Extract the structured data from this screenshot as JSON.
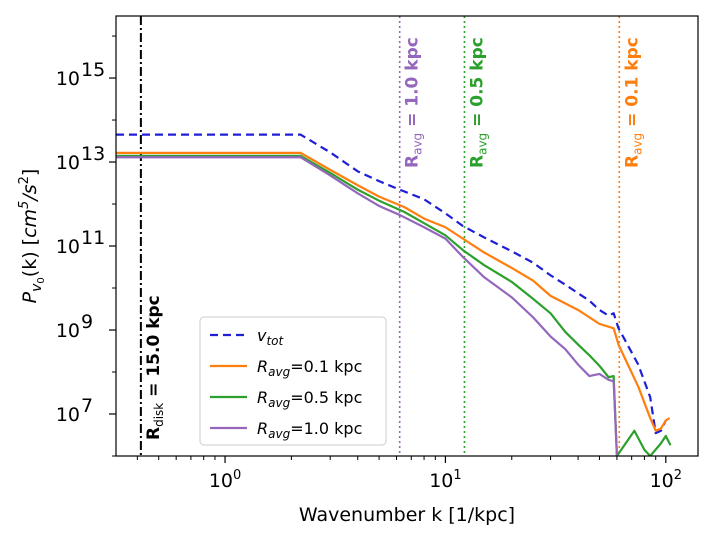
{
  "chart_data": {
    "type": "line",
    "title": "",
    "xlabel": "Wavenumber k [1/kpc]",
    "ylabel_parts": {
      "p": "P",
      "sub": "v",
      "subsub": "0",
      "arg": "(k) [",
      "unit": "cm",
      "sup1": "5",
      "slash": "/s",
      "sup2": "2",
      "close": "]"
    },
    "xscale": "log",
    "yscale": "log",
    "xlim": [
      0.32,
      140
    ],
    "ylim": [
      1000000.0,
      3e+16
    ],
    "xticks": [
      {
        "value": 1,
        "base": "10",
        "exp": "0"
      },
      {
        "value": 10,
        "base": "10",
        "exp": "1"
      },
      {
        "value": 100,
        "base": "10",
        "exp": "2"
      }
    ],
    "yticks": [
      {
        "value": 10000000.0,
        "base": "10",
        "exp": "7"
      },
      {
        "value": 1000000000.0,
        "base": "10",
        "exp": "9"
      },
      {
        "value": 100000000000.0,
        "base": "10",
        "exp": "11"
      },
      {
        "value": 10000000000000.0,
        "base": "10",
        "exp": "13"
      },
      {
        "value": 1000000000000000.0,
        "base": "10",
        "exp": "15"
      }
    ],
    "series": [
      {
        "id": "vtot",
        "name": "v_tot",
        "color": "#1f1fd6",
        "dash": "8,5",
        "points": [
          [
            0.32,
            45000000000000.0
          ],
          [
            2.2,
            45000000000000.0
          ],
          [
            3.0,
            17000000000000.0
          ],
          [
            4.0,
            6000000000000.0
          ],
          [
            5.0,
            3500000000000.0
          ],
          [
            6.2,
            2200000000000.0
          ],
          [
            8.0,
            1300000000000.0
          ],
          [
            10.0,
            600000000000.0
          ],
          [
            12.0,
            300000000000.0
          ],
          [
            15.0,
            160000000000.0
          ],
          [
            20.0,
            75000000000.0
          ],
          [
            25.0,
            40000000000.0
          ],
          [
            30.0,
            20000000000.0
          ],
          [
            35.0,
            12000000000.0
          ],
          [
            40.0,
            7500000000.0
          ],
          [
            45.0,
            5000000000.0
          ],
          [
            50.0,
            3000000000.0
          ],
          [
            55.0,
            2200000000.0
          ],
          [
            58.0,
            2500000000.0
          ],
          [
            61.0,
            1100000000.0
          ],
          [
            65.0,
            600000000.0
          ],
          [
            75.0,
            150000000.0
          ],
          [
            85.0,
            25000000.0
          ],
          [
            90.0,
            3500000.0
          ],
          [
            95.0,
            4000000.0
          ],
          [
            100.0,
            7000000.0
          ]
        ]
      },
      {
        "id": "ravg01",
        "name": "R_avg=0.1 kpc",
        "color": "#ff7f0e",
        "dash": "",
        "points": [
          [
            0.32,
            16500000000000.0
          ],
          [
            2.2,
            16500000000000.0
          ],
          [
            3.0,
            6500000000000.0
          ],
          [
            4.0,
            2800000000000.0
          ],
          [
            5.0,
            1500000000000.0
          ],
          [
            6.5,
            850000000000.0
          ],
          [
            8.0,
            450000000000.0
          ],
          [
            10.0,
            280000000000.0
          ],
          [
            12.0,
            150000000000.0
          ],
          [
            15.0,
            70000000000.0
          ],
          [
            20.0,
            30000000000.0
          ],
          [
            25.0,
            15000000000.0
          ],
          [
            30.0,
            6500000000.0
          ],
          [
            40.0,
            3000000000.0
          ],
          [
            50.0,
            1400000000.0
          ],
          [
            58.0,
            1100000000.0
          ],
          [
            61.0,
            450000000.0
          ],
          [
            65.0,
            220000000.0
          ],
          [
            75.0,
            45000000.0
          ],
          [
            85.0,
            8000000.0
          ],
          [
            90.0,
            4000000.0
          ],
          [
            95.0,
            4500000.0
          ],
          [
            100.0,
            7000000.0
          ],
          [
            104.0,
            8000000.0
          ]
        ]
      },
      {
        "id": "ravg05",
        "name": "R_avg=0.5 kpc",
        "color": "#2ca02c",
        "dash": "",
        "points": [
          [
            0.32,
            14000000000000.0
          ],
          [
            2.2,
            14000000000000.0
          ],
          [
            3.0,
            5500000000000.0
          ],
          [
            4.0,
            2200000000000.0
          ],
          [
            5.0,
            1200000000000.0
          ],
          [
            6.5,
            650000000000.0
          ],
          [
            8.0,
            350000000000.0
          ],
          [
            10.0,
            180000000000.0
          ],
          [
            12.0,
            80000000000.0
          ],
          [
            15.0,
            35000000000.0
          ],
          [
            20.0,
            14000000000.0
          ],
          [
            25.0,
            5500000000.0
          ],
          [
            30.0,
            2500000000.0
          ],
          [
            35.0,
            900000000.0
          ],
          [
            40.0,
            450000000.0
          ],
          [
            45.0,
            250000000.0
          ],
          [
            50.0,
            140000000.0
          ],
          [
            55.0,
            75000000.0
          ],
          [
            58.0,
            80000000.0
          ],
          [
            60.0,
            1000000.0
          ],
          [
            72.0,
            4000000.0
          ],
          [
            80.0,
            1400000.0
          ],
          [
            85.0,
            1000000.0
          ],
          [
            95.0,
            2000000.0
          ],
          [
            100.0,
            3000000.0
          ],
          [
            105.0,
            1800000.0
          ]
        ]
      },
      {
        "id": "ravg10",
        "name": "R_avg=1.0 kpc",
        "color": "#9467bd",
        "dash": "",
        "points": [
          [
            0.32,
            13000000000000.0
          ],
          [
            2.2,
            13000000000000.0
          ],
          [
            3.0,
            4800000000000.0
          ],
          [
            4.0,
            1800000000000.0
          ],
          [
            5.0,
            900000000000.0
          ],
          [
            6.2,
            550000000000.0
          ],
          [
            8.0,
            280000000000.0
          ],
          [
            10.0,
            150000000000.0
          ],
          [
            12.0,
            55000000000.0
          ],
          [
            15.0,
            18000000000.0
          ],
          [
            20.0,
            6000000000.0
          ],
          [
            25.0,
            2000000000.0
          ],
          [
            30.0,
            700000000.0
          ],
          [
            35.0,
            350000000.0
          ],
          [
            40.0,
            150000000.0
          ],
          [
            45.0,
            80000000.0
          ],
          [
            50.0,
            90000000.0
          ],
          [
            55.0,
            65000000.0
          ],
          [
            58.0,
            60000000.0
          ],
          [
            60.0,
            1000000.0
          ]
        ]
      }
    ],
    "vlines": [
      {
        "id": "rdisk",
        "x": 0.415,
        "color": "#000000",
        "style": "dashdot",
        "label_main": "R",
        "label_sub": "disk",
        "label_rest": " = 15.0 kpc",
        "label_color": "#000000",
        "bold": false
      },
      {
        "id": "r10",
        "x": 6.2,
        "color": "#9467bd",
        "style": "dotted",
        "label_main": "R",
        "label_sub": "avg",
        "label_rest": " = 1.0 kpc",
        "label_color": "#9467bd",
        "bold": true
      },
      {
        "id": "r05",
        "x": 12.2,
        "color": "#2ca02c",
        "style": "dotted",
        "label_main": "R",
        "label_sub": "avg",
        "label_rest": " = 0.5 kpc",
        "label_color": "#2ca02c",
        "bold": true
      },
      {
        "id": "r01",
        "x": 61.5,
        "color": "#ff7f0e",
        "style": "dotted",
        "label_main": "R",
        "label_sub": "avg",
        "label_rest": " = 0.1 kpc",
        "label_color": "#ff7f0e",
        "bold": true
      }
    ],
    "legend": {
      "position": "lower-left",
      "entries": [
        {
          "series": "vtot",
          "main": "v",
          "sub": "tot",
          "rest": ""
        },
        {
          "series": "ravg01",
          "main": "R",
          "sub": "avg",
          "rest": "=0.1 kpc"
        },
        {
          "series": "ravg05",
          "main": "R",
          "sub": "avg",
          "rest": "=0.5 kpc"
        },
        {
          "series": "ravg10",
          "main": "R",
          "sub": "avg",
          "rest": "=1.0 kpc"
        }
      ]
    },
    "grid": false
  }
}
